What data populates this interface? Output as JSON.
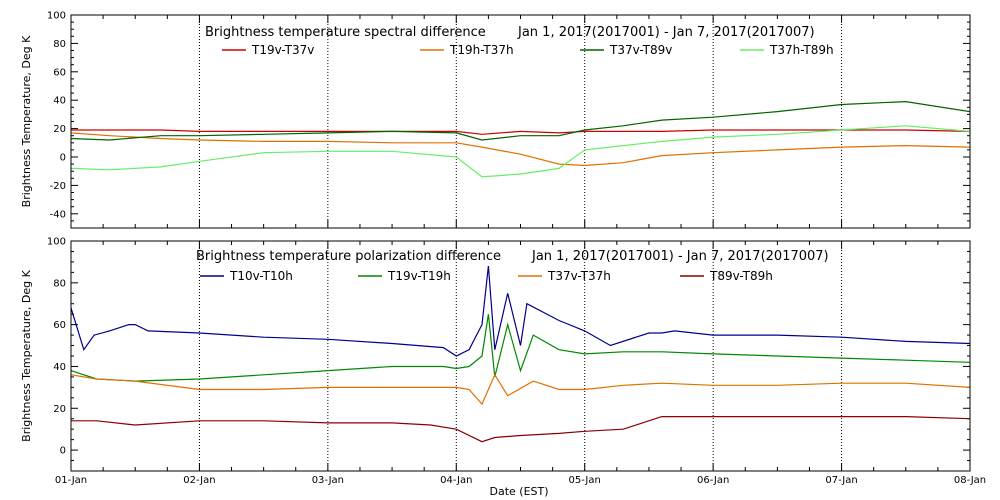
{
  "x_axis": {
    "label": "Date (EST)",
    "tick_labels": [
      "01-Jan",
      "02-Jan",
      "03-Jan",
      "04-Jan",
      "05-Jan",
      "06-Jan",
      "07-Jan",
      "08-Jan"
    ],
    "range_days": [
      0,
      7
    ]
  },
  "chart_data": [
    {
      "type": "line",
      "title": "Brightness temperature spectral difference",
      "date_range": "Jan  1, 2017(2017001) - Jan  7, 2017(2017007)",
      "ylabel": "Brightness Temperature, Deg K",
      "ylim": [
        -50,
        100
      ],
      "yticks": [
        -40,
        -20,
        0,
        20,
        40,
        60,
        80,
        100
      ],
      "grid": "vertical dotted at each day",
      "series": [
        {
          "name": "T19v-T37v",
          "color": "#cc0000",
          "x": [
            0,
            0.3,
            0.7,
            1.0,
            1.5,
            2.0,
            2.5,
            3.0,
            3.2,
            3.5,
            3.8,
            4.0,
            4.3,
            4.6,
            5.0,
            5.5,
            6.0,
            6.5,
            7.0
          ],
          "values": [
            19,
            19,
            19,
            18,
            18,
            18,
            18,
            18,
            16,
            18,
            17,
            18,
            18,
            18,
            19,
            19,
            19,
            19,
            18
          ]
        },
        {
          "name": "T19h-T37h",
          "color": "#e07000",
          "x": [
            0,
            0.3,
            0.7,
            1.0,
            1.5,
            2.0,
            2.5,
            3.0,
            3.2,
            3.5,
            3.8,
            4.0,
            4.3,
            4.6,
            5.0,
            5.5,
            6.0,
            6.5,
            7.0
          ],
          "values": [
            17,
            15,
            13,
            12,
            11,
            11,
            10,
            10,
            7,
            2,
            -5,
            -6,
            -4,
            1,
            3,
            5,
            7,
            8,
            7
          ]
        },
        {
          "name": "T37v-T89v",
          "color": "#006400",
          "x": [
            0,
            0.3,
            0.7,
            1.0,
            1.5,
            2.0,
            2.5,
            3.0,
            3.2,
            3.5,
            3.8,
            4.0,
            4.3,
            4.6,
            5.0,
            5.5,
            6.0,
            6.5,
            7.0
          ],
          "values": [
            13,
            12,
            15,
            15,
            16,
            17,
            18,
            17,
            12,
            15,
            15,
            19,
            22,
            26,
            28,
            32,
            37,
            39,
            32
          ]
        },
        {
          "name": "T37h-T89h",
          "color": "#66ee66",
          "x": [
            0,
            0.3,
            0.7,
            1.0,
            1.5,
            2.0,
            2.5,
            3.0,
            3.2,
            3.5,
            3.8,
            4.0,
            4.3,
            4.6,
            5.0,
            5.5,
            6.0,
            6.5,
            7.0
          ],
          "values": [
            -8,
            -9,
            -7,
            -3,
            3,
            4,
            4,
            0,
            -14,
            -12,
            -8,
            5,
            8,
            11,
            14,
            16,
            19,
            22,
            18
          ]
        }
      ]
    },
    {
      "type": "line",
      "title": "Brightness temperature polarization difference",
      "date_range": "Jan  1, 2017(2017001) - Jan  7, 2017(2017007)",
      "ylabel": "Brightness Temperature, Deg K",
      "ylim": [
        -10,
        100
      ],
      "yticks": [
        0,
        20,
        40,
        60,
        80,
        100
      ],
      "grid": "vertical dotted at each day",
      "series": [
        {
          "name": "T10v-T10h",
          "color": "#00008b",
          "x": [
            0,
            0.1,
            0.18,
            0.3,
            0.45,
            0.5,
            0.6,
            1.0,
            1.5,
            2.0,
            2.5,
            2.9,
            3.0,
            3.1,
            3.2,
            3.25,
            3.3,
            3.4,
            3.5,
            3.55,
            3.8,
            4.0,
            4.2,
            4.5,
            4.6,
            4.7,
            5.0,
            5.5,
            6.0,
            6.5,
            7.0
          ],
          "values": [
            68,
            48,
            55,
            57,
            60,
            60,
            57,
            56,
            54,
            53,
            51,
            49,
            45,
            48,
            60,
            88,
            48,
            75,
            50,
            70,
            62,
            57,
            50,
            56,
            56,
            57,
            55,
            55,
            54,
            52,
            51
          ]
        },
        {
          "name": "T19v-T19h",
          "color": "#008800",
          "x": [
            0,
            0.1,
            0.2,
            0.5,
            1.0,
            1.5,
            2.0,
            2.5,
            2.9,
            3.0,
            3.1,
            3.2,
            3.25,
            3.3,
            3.4,
            3.5,
            3.6,
            3.8,
            4.0,
            4.3,
            4.6,
            5.0,
            5.5,
            6.0,
            6.5,
            7.0
          ],
          "values": [
            38,
            36,
            34,
            33,
            34,
            36,
            38,
            40,
            40,
            39,
            40,
            45,
            65,
            35,
            60,
            38,
            55,
            48,
            46,
            47,
            47,
            46,
            45,
            44,
            43,
            42
          ]
        },
        {
          "name": "T37v-T37h",
          "color": "#e07000",
          "x": [
            0,
            0.2,
            0.5,
            1.0,
            1.5,
            2.0,
            2.5,
            3.0,
            3.1,
            3.2,
            3.3,
            3.4,
            3.6,
            3.8,
            4.0,
            4.3,
            4.6,
            5.0,
            5.5,
            6.0,
            6.5,
            7.0
          ],
          "values": [
            36,
            34,
            33,
            29,
            29,
            30,
            30,
            30,
            29,
            22,
            36,
            26,
            33,
            29,
            29,
            31,
            32,
            31,
            31,
            32,
            32,
            30
          ]
        },
        {
          "name": "T89v-T89h",
          "color": "#8b0000",
          "x": [
            0,
            0.2,
            0.5,
            1.0,
            1.5,
            2.0,
            2.5,
            2.8,
            3.0,
            3.2,
            3.3,
            3.5,
            3.8,
            4.0,
            4.3,
            4.5,
            4.6,
            5.0,
            5.5,
            6.0,
            6.5,
            7.0
          ],
          "values": [
            14,
            14,
            12,
            14,
            14,
            13,
            13,
            12,
            10,
            4,
            6,
            7,
            8,
            9,
            10,
            14,
            16,
            16,
            16,
            16,
            16,
            15
          ]
        }
      ]
    }
  ]
}
